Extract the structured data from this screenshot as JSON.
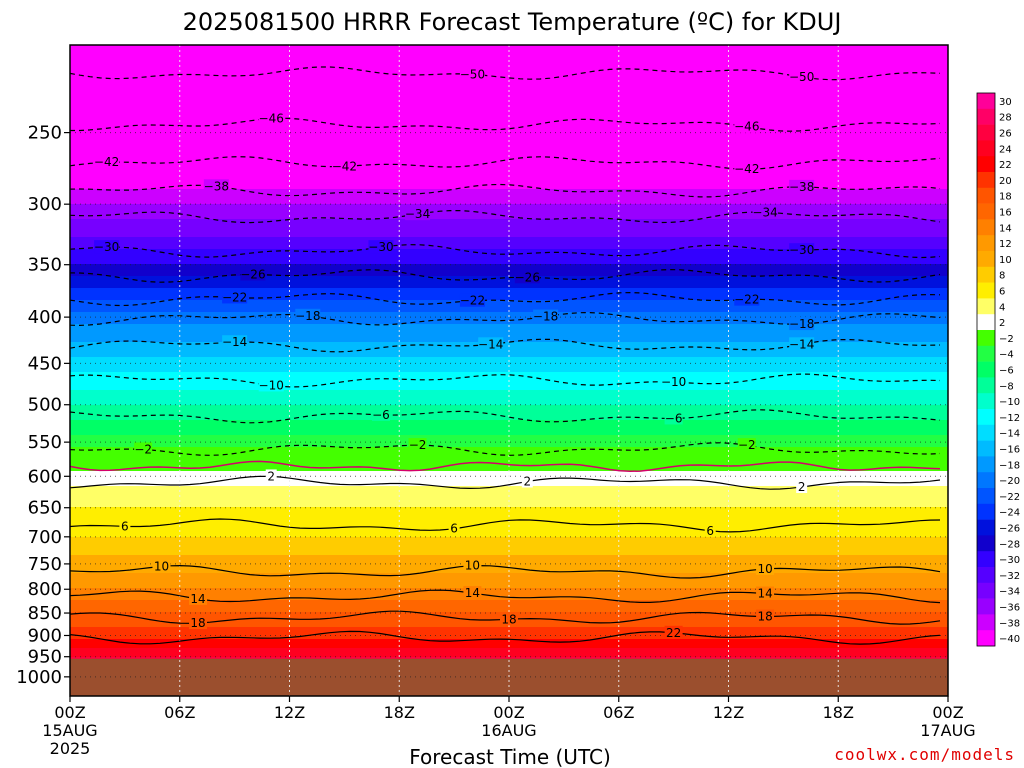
{
  "chart_data": {
    "type": "heatmap",
    "title": "2025081500 HRRR Forecast Temperature (ºC) for KDUJ",
    "xlabel": "Forecast Time (UTC)",
    "ylabel": "",
    "credit": "coolwx.com/models",
    "x_hours_range": [
      0,
      48
    ],
    "ylim_hpa": [
      1050,
      200
    ],
    "y_ticks": [
      250,
      300,
      350,
      400,
      450,
      500,
      550,
      600,
      650,
      700,
      750,
      800,
      850,
      900,
      950,
      1000
    ],
    "x_ticks": [
      {
        "hour": 0,
        "line1": "00Z",
        "line2": "15AUG",
        "line3": "2025"
      },
      {
        "hour": 6,
        "line1": "06Z",
        "line2": "",
        "line3": ""
      },
      {
        "hour": 12,
        "line1": "12Z",
        "line2": "",
        "line3": ""
      },
      {
        "hour": 18,
        "line1": "18Z",
        "line2": "",
        "line3": ""
      },
      {
        "hour": 24,
        "line1": "00Z",
        "line2": "16AUG",
        "line3": ""
      },
      {
        "hour": 30,
        "line1": "06Z",
        "line2": "",
        "line3": ""
      },
      {
        "hour": 36,
        "line1": "12Z",
        "line2": "",
        "line3": ""
      },
      {
        "hour": 42,
        "line1": "18Z",
        "line2": "",
        "line3": ""
      },
      {
        "hour": 48,
        "line1": "00Z",
        "line2": "17AUG",
        "line3": ""
      }
    ],
    "profile": [
      {
        "p": 200,
        "t": -54
      },
      {
        "p": 250,
        "t": -45
      },
      {
        "p": 300,
        "t": -36
      },
      {
        "p": 350,
        "t": -28
      },
      {
        "p": 400,
        "t": -19
      },
      {
        "p": 450,
        "t": -13
      },
      {
        "p": 500,
        "t": -8
      },
      {
        "p": 550,
        "t": -3
      },
      {
        "p": 600,
        "t": 3
      },
      {
        "p": 650,
        "t": 6
      },
      {
        "p": 700,
        "t": 8
      },
      {
        "p": 750,
        "t": 11
      },
      {
        "p": 800,
        "t": 14
      },
      {
        "p": 850,
        "t": 18
      },
      {
        "p": 900,
        "t": 21
      },
      {
        "p": 950,
        "t": 26
      }
    ],
    "ground_pressure_hpa": 955,
    "colorbar": {
      "levels": [
        30,
        28,
        26,
        24,
        22,
        20,
        18,
        16,
        14,
        12,
        10,
        8,
        6,
        4,
        2,
        -2,
        -4,
        -6,
        -8,
        -10,
        -12,
        -14,
        -16,
        -18,
        -20,
        -22,
        -24,
        -26,
        -28,
        -30,
        -32,
        -34,
        -36,
        -38,
        -40
      ],
      "labels": [
        "30",
        "28",
        "26",
        "24",
        "22",
        "20",
        "18",
        "16",
        "14",
        "12",
        "10",
        "8",
        "6",
        "4",
        "2",
        "−2",
        "−4",
        "−6",
        "−8",
        "−10",
        "−12",
        "−14",
        "−16",
        "−18",
        "−20",
        "−22",
        "−24",
        "−26",
        "−28",
        "−30",
        "−32",
        "−34",
        "−36",
        "−38",
        "−40"
      ],
      "colors": [
        "#ff0099",
        "#ff0066",
        "#ff0040",
        "#ff0020",
        "#ff0000",
        "#ff3300",
        "#ff5500",
        "#ff6600",
        "#ff8000",
        "#ff9900",
        "#ffaa00",
        "#ffcc00",
        "#ffee00",
        "#ffff66",
        "#ffffff",
        "#44ff00",
        "#22ff44",
        "#00ff66",
        "#00ff99",
        "#00ffcc",
        "#00ffff",
        "#00ddff",
        "#00bbff",
        "#0099ff",
        "#0077ff",
        "#0055ff",
        "#0033ff",
        "#0011dd",
        "#1100cc",
        "#3300ff",
        "#5500ff",
        "#7700ff",
        "#9900ff",
        "#cc00ff",
        "#ff00ff"
      ]
    },
    "contours_dashed": [
      {
        "label": "−50",
        "p": 215,
        "labels_at_hours": [
          22,
          40
        ]
      },
      {
        "label": "−46",
        "p": 245,
        "labels_at_hours": [
          11,
          37
        ]
      },
      {
        "label": "−42",
        "p": 270,
        "labels_at_hours": [
          2,
          15,
          37
        ]
      },
      {
        "label": "−38",
        "p": 290,
        "labels_at_hours": [
          8,
          40
        ]
      },
      {
        "label": "−34",
        "p": 310,
        "labels_at_hours": [
          19,
          38
        ]
      },
      {
        "label": "−30",
        "p": 338,
        "labels_at_hours": [
          2,
          17,
          40
        ]
      },
      {
        "label": "−26",
        "p": 360,
        "labels_at_hours": [
          10,
          25
        ]
      },
      {
        "label": "−22",
        "p": 382,
        "labels_at_hours": [
          9,
          22,
          37
        ]
      },
      {
        "label": "−18",
        "p": 402,
        "labels_at_hours": [
          13,
          26,
          40
        ]
      },
      {
        "label": "−14",
        "p": 430,
        "labels_at_hours": [
          9,
          23,
          40
        ]
      },
      {
        "label": "−10",
        "p": 470,
        "labels_at_hours": [
          11,
          33
        ]
      },
      {
        "label": "−6",
        "p": 515,
        "labels_at_hours": [
          17,
          33
        ]
      },
      {
        "label": "−2",
        "p": 560,
        "labels_at_hours": [
          4,
          19,
          37
        ]
      }
    ],
    "contours_solid": [
      {
        "label": "2",
        "p": 610,
        "labels_at_hours": [
          11,
          25,
          40
        ]
      },
      {
        "label": "6",
        "p": 680,
        "labels_at_hours": [
          3,
          21,
          35
        ]
      },
      {
        "label": "10",
        "p": 765,
        "labels_at_hours": [
          5,
          22,
          38
        ]
      },
      {
        "label": "14",
        "p": 815,
        "labels_at_hours": [
          7,
          22,
          38
        ]
      },
      {
        "label": "18",
        "p": 860,
        "labels_at_hours": [
          7,
          24,
          38
        ]
      },
      {
        "label": "22",
        "p": 905,
        "labels_at_hours": [
          33
        ]
      }
    ]
  }
}
